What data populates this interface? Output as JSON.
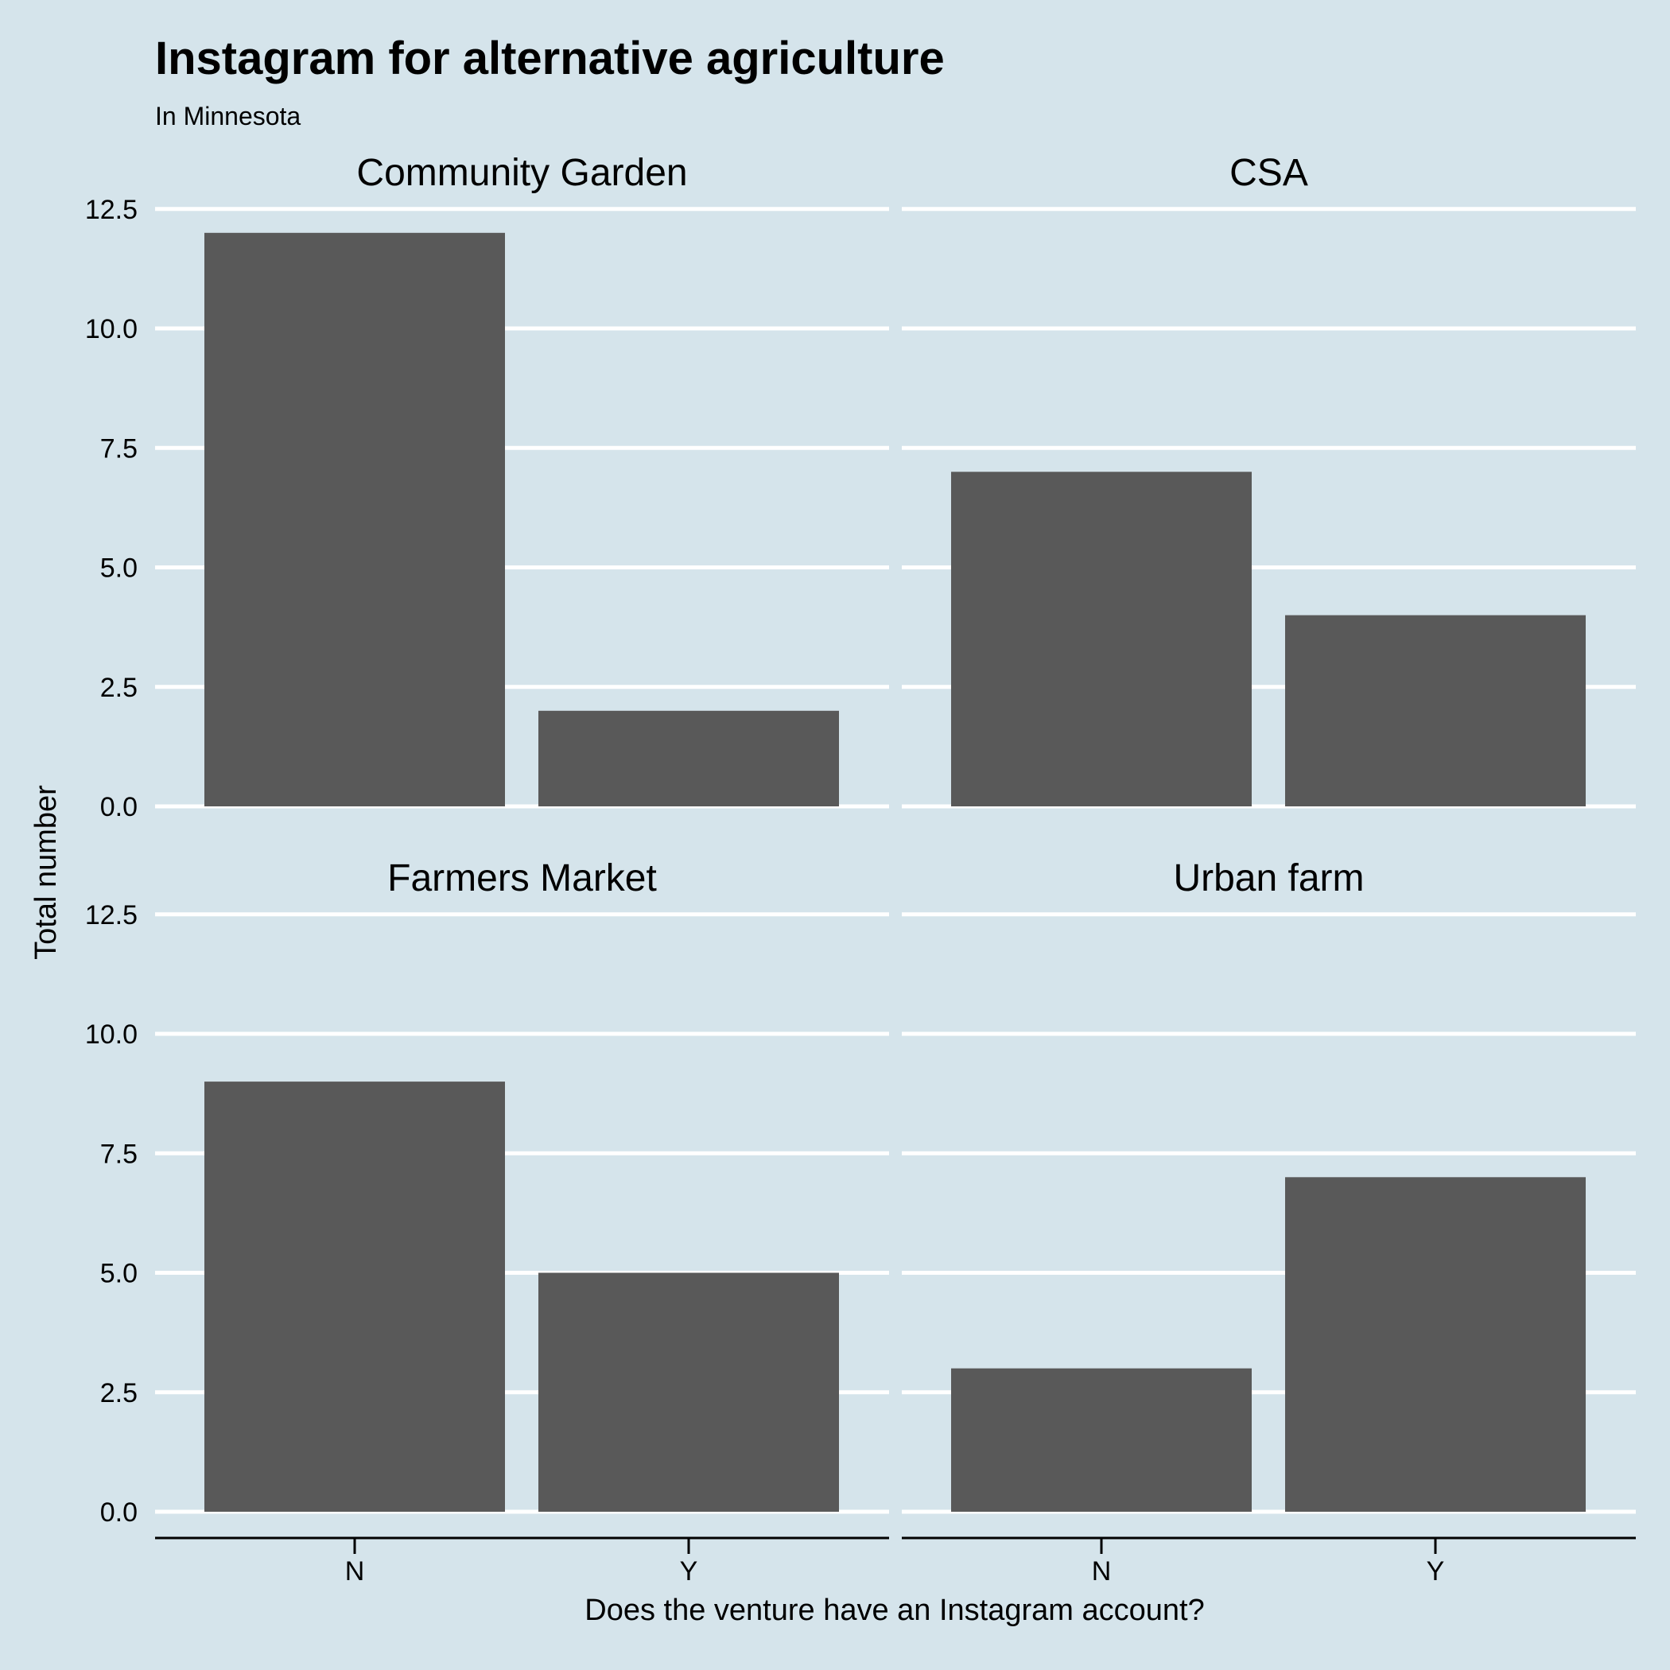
{
  "chart_data": {
    "type": "bar",
    "title": "Instagram for alternative agriculture",
    "subtitle": "In Minnesota",
    "xlabel": "Does the venture have an Instagram account?",
    "ylabel": "Total number",
    "categories": [
      "N",
      "Y"
    ],
    "ylim": [
      0,
      12.5
    ],
    "yticks": [
      "0.0",
      "2.5",
      "5.0",
      "7.5",
      "10.0",
      "12.5"
    ],
    "grid": "horizontal major lines only",
    "facets": [
      {
        "name": "Community Garden",
        "values": [
          12,
          2
        ]
      },
      {
        "name": "CSA",
        "values": [
          7,
          4
        ]
      },
      {
        "name": "Farmers Market",
        "values": [
          9,
          5
        ]
      },
      {
        "name": "Urban farm",
        "values": [
          3,
          7
        ]
      }
    ],
    "colors": {
      "background": "#d5e4eb",
      "bar": "#595959",
      "grid": "#ffffff",
      "axis": "#000000"
    }
  }
}
